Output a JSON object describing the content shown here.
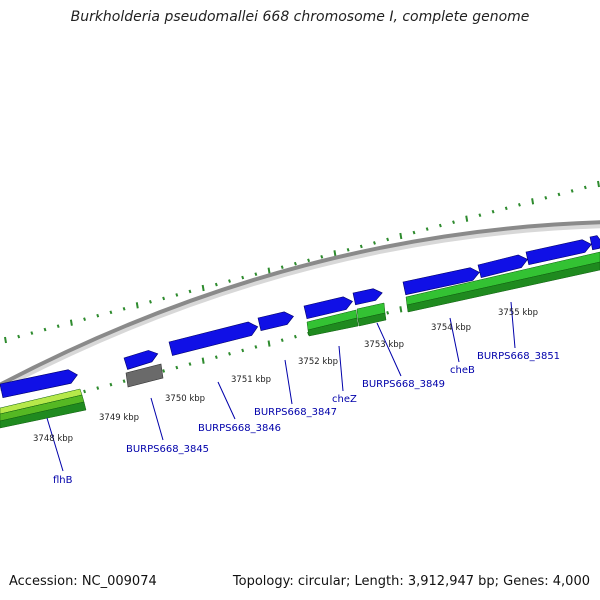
{
  "title": "Burkholderia pseudomallei 668 chromosome I, complete genome",
  "footer": {
    "accession": "Accession: NC_009074",
    "summary": "Topology: circular; Length: 3,912,947 bp; Genes: 4,000"
  },
  "colors": {
    "backbone": "#8a8a8a",
    "gene_forward": "#1010e6",
    "gene_other": "#6a6a6a",
    "cds_green": "#33c233",
    "cds_green_dark": "#1f8a1f",
    "cds_yellow_green": "#b6e84a",
    "tick_green": "#2e8b2e",
    "label_blue": "#0000aa",
    "kbp_label": "#222222"
  },
  "kbp_labels": [
    "3748 kbp",
    "3749 kbp",
    "3750 kbp",
    "3751 kbp",
    "3752 kbp",
    "3753 kbp",
    "3754 kbp",
    "3755 kbp"
  ],
  "gene_labels": [
    "flhB",
    "BURPS668_3845",
    "BURPS668_3846",
    "BURPS668_3847",
    "cheZ",
    "BURPS668_3849",
    "cheB",
    "BURPS668_3851"
  ]
}
